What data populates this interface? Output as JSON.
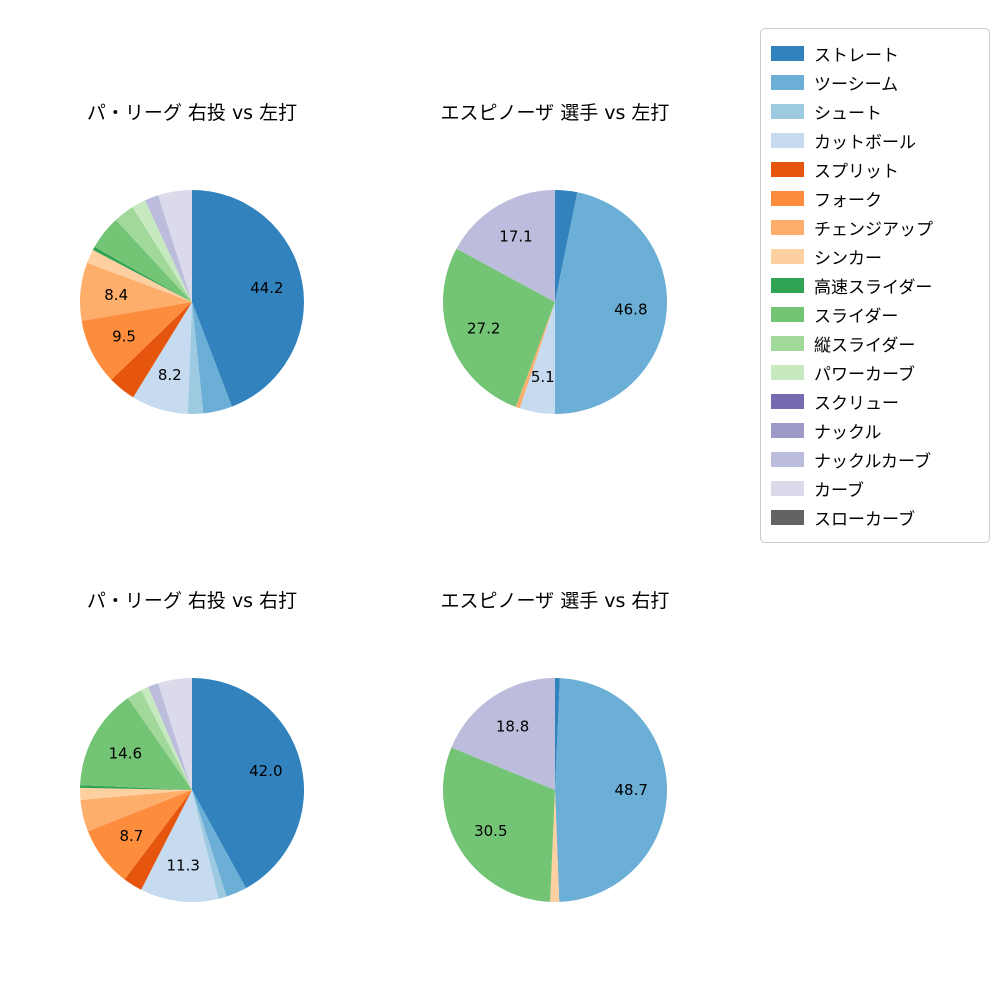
{
  "page": {
    "background": "#ffffff"
  },
  "legend": {
    "items": [
      {
        "label": "ストレート",
        "color": "#3182bd"
      },
      {
        "label": "ツーシーム",
        "color": "#6baed6"
      },
      {
        "label": "シュート",
        "color": "#9ecae1"
      },
      {
        "label": "カットボール",
        "color": "#c6dbef"
      },
      {
        "label": "スプリット",
        "color": "#e6550d"
      },
      {
        "label": "フォーク",
        "color": "#fd8d3c"
      },
      {
        "label": "チェンジアップ",
        "color": "#fdae6b"
      },
      {
        "label": "シンカー",
        "color": "#fdd0a2"
      },
      {
        "label": "高速スライダー",
        "color": "#31a354"
      },
      {
        "label": "スライダー",
        "color": "#74c476"
      },
      {
        "label": "縦スライダー",
        "color": "#a1d99b"
      },
      {
        "label": "パワーカーブ",
        "color": "#c7e9c0"
      },
      {
        "label": "スクリュー",
        "color": "#756bb1"
      },
      {
        "label": "ナックル",
        "color": "#9e9ac8"
      },
      {
        "label": "ナックルカーブ",
        "color": "#bcbddc"
      },
      {
        "label": "カーブ",
        "color": "#dadaeb"
      },
      {
        "label": "スローカーブ",
        "color": "#636363"
      }
    ]
  },
  "chart_data": [
    {
      "type": "pie",
      "title": "パ・リーグ 右投 vs 左打",
      "start_angle_deg": 0,
      "direction": "clockwise",
      "label_min_pct": 5,
      "labels": [
        "ストレート",
        "ツーシーム",
        "シュート",
        "カットボール",
        "スプリット",
        "フォーク",
        "チェンジアップ",
        "シンカー",
        "高速スライダー",
        "スライダー",
        "縦スライダー",
        "パワーカーブ",
        "ナックルカーブ",
        "カーブ"
      ],
      "values": [
        44.2,
        4.2,
        2.2,
        8.2,
        4.0,
        9.5,
        8.4,
        2.0,
        0.5,
        4.9,
        3.0,
        2.0,
        2.0,
        4.9
      ]
    },
    {
      "type": "pie",
      "title": "エスピノーザ 選手 vs 左打",
      "start_angle_deg": 0,
      "direction": "clockwise",
      "label_min_pct": 5,
      "labels": [
        "ストレート",
        "ツーシーム",
        "カットボール",
        "チェンジアップ",
        "スライダー",
        "ナックルカーブ"
      ],
      "values": [
        3.2,
        46.8,
        5.1,
        0.6,
        27.2,
        17.1
      ]
    },
    {
      "type": "pie",
      "title": "パ・リーグ 右投 vs 右打",
      "start_angle_deg": 0,
      "direction": "clockwise",
      "label_min_pct": 5,
      "labels": [
        "ストレート",
        "ツーシーム",
        "シュート",
        "カットボール",
        "スプリット",
        "フォーク",
        "チェンジアップ",
        "シンカー",
        "高速スライダー",
        "スライダー",
        "縦スライダー",
        "パワーカーブ",
        "ナックルカーブ",
        "カーブ"
      ],
      "values": [
        42.0,
        3.0,
        1.2,
        11.3,
        2.8,
        8.7,
        4.6,
        1.7,
        0.4,
        14.6,
        2.2,
        1.1,
        1.5,
        4.9
      ]
    },
    {
      "type": "pie",
      "title": "エスピノーザ 選手 vs 右打",
      "start_angle_deg": 0,
      "direction": "clockwise",
      "label_min_pct": 5,
      "labels": [
        "ストレート",
        "ツーシーム",
        "シンカー",
        "スライダー",
        "ナックルカーブ"
      ],
      "values": [
        0.7,
        48.7,
        1.3,
        30.5,
        18.8
      ]
    }
  ]
}
